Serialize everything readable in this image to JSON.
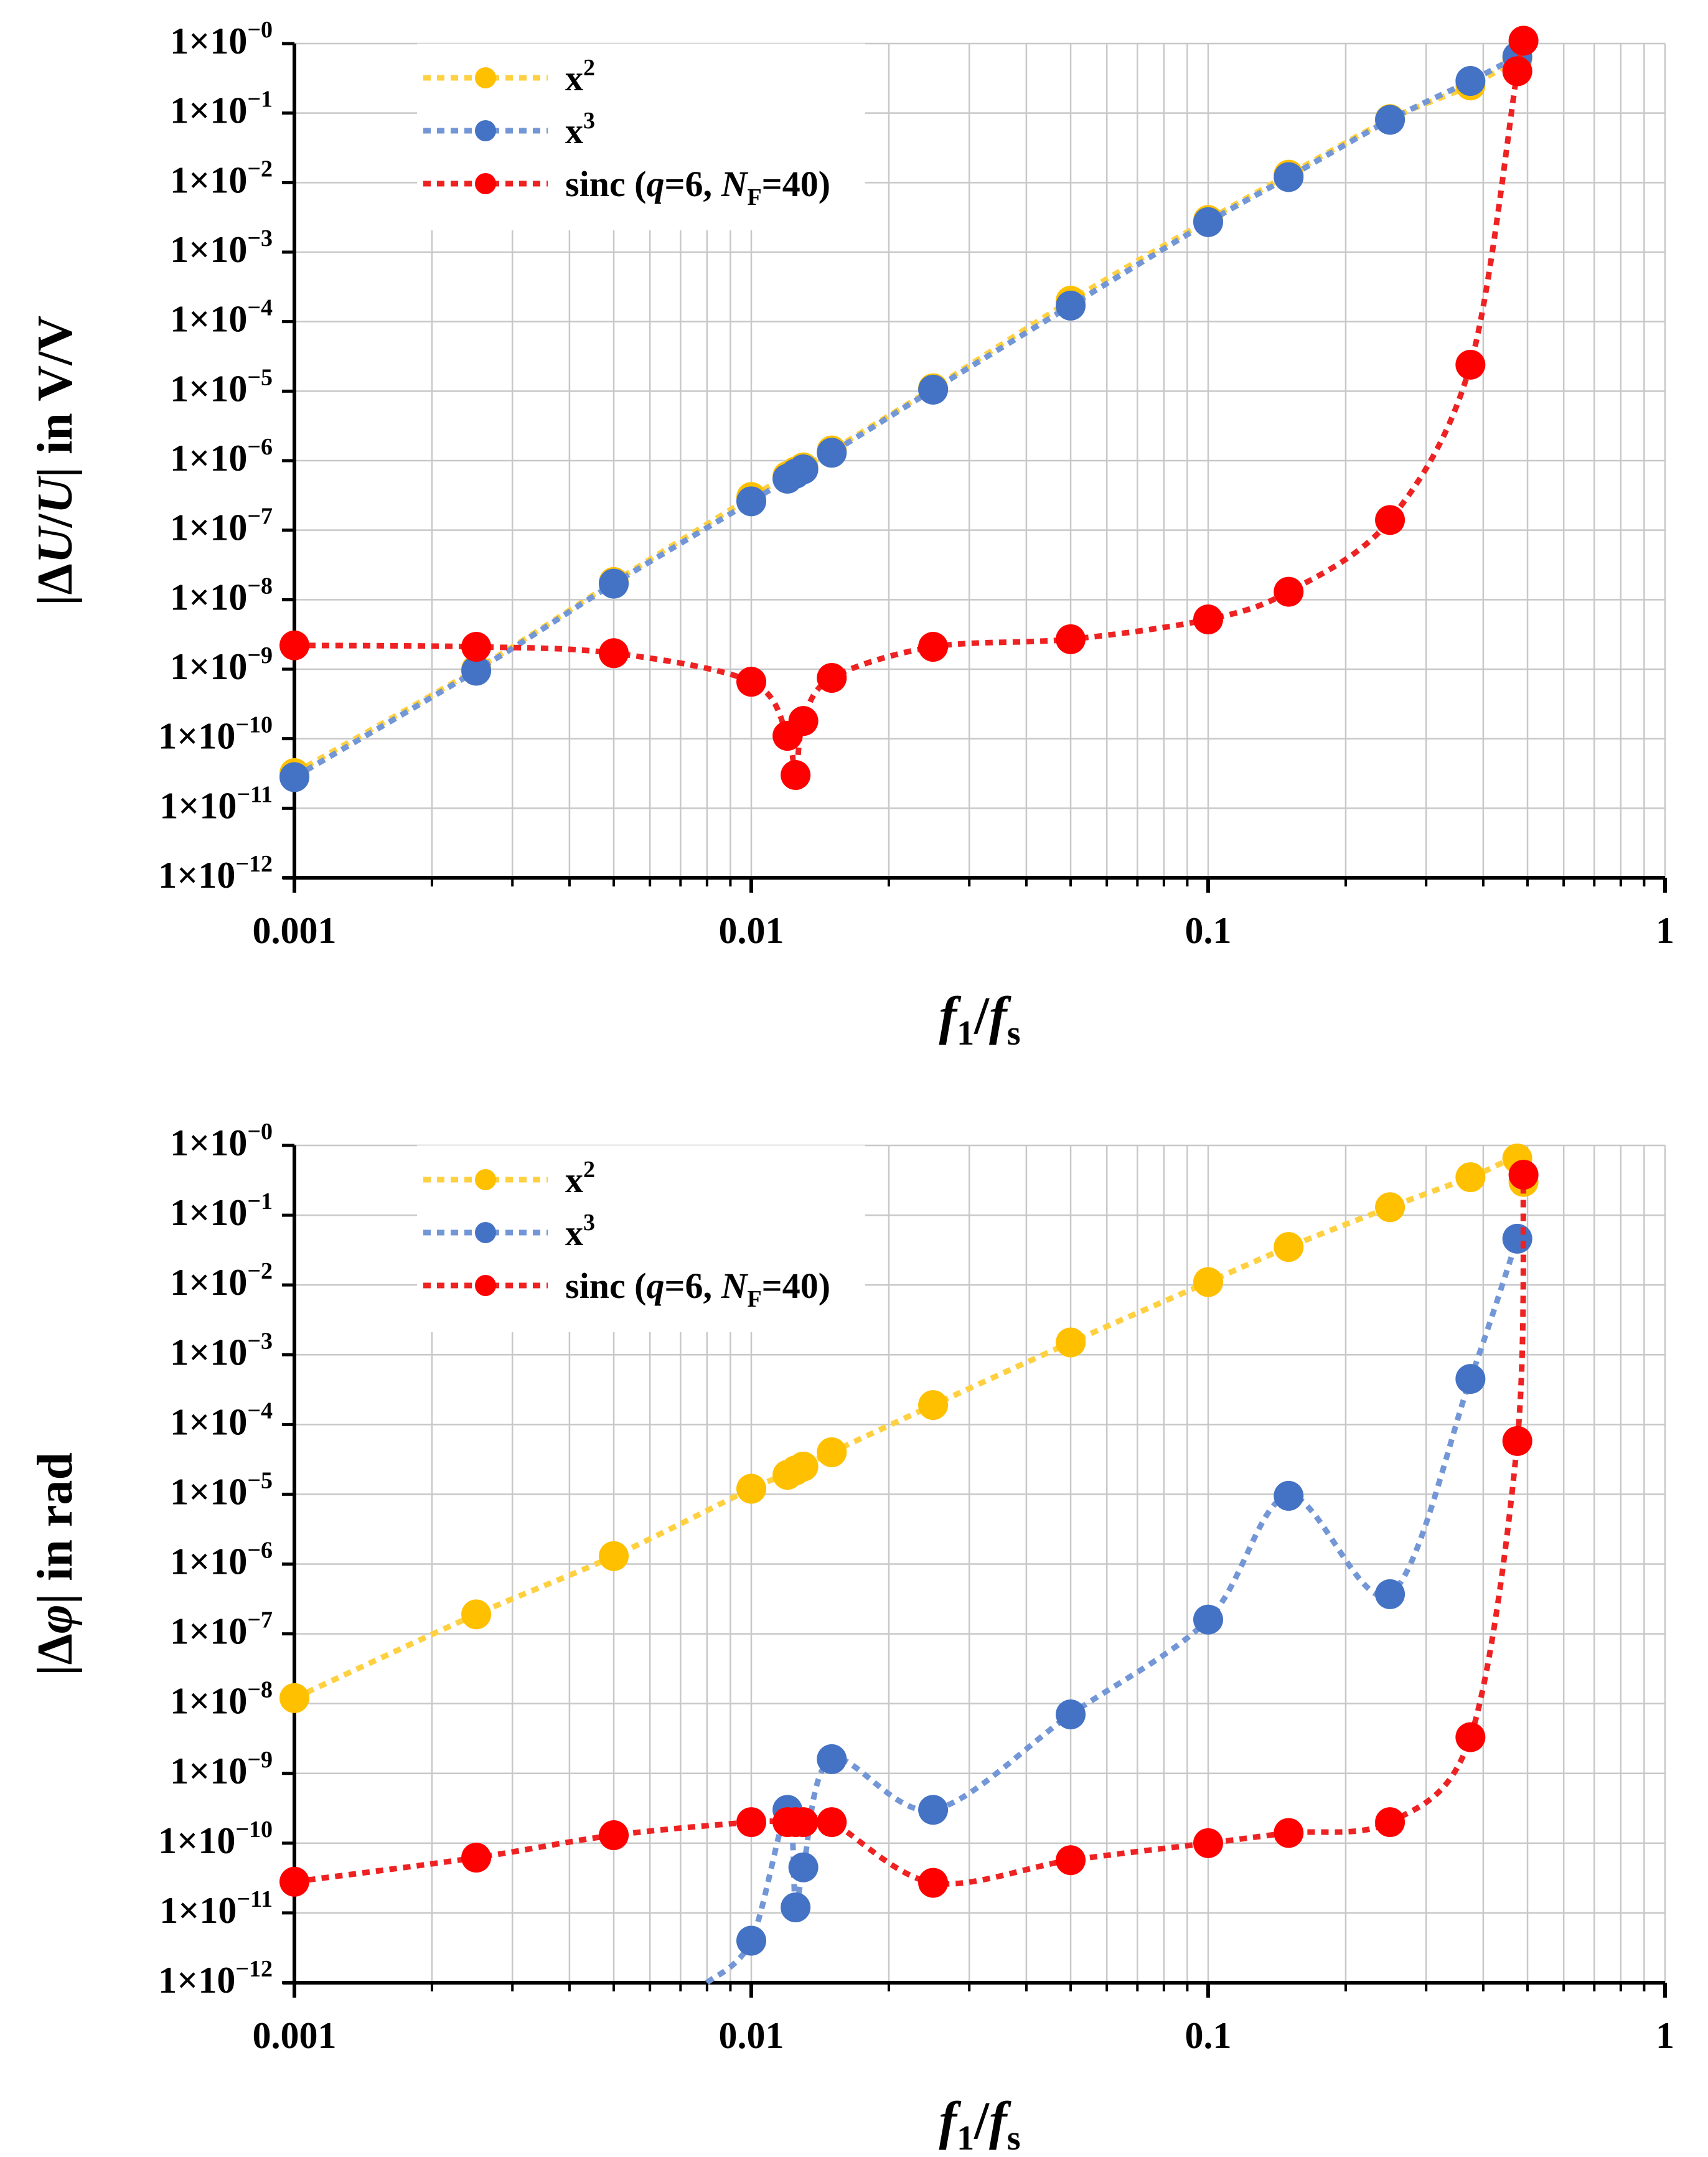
{
  "chart_data": [
    {
      "type": "line",
      "panel": "top",
      "x_scale": "log",
      "y_scale": "log",
      "xlim": [
        0.001,
        1
      ],
      "ylim": [
        1e-12,
        1
      ],
      "x_tick_labels": [
        "0.001",
        "0.01",
        "0.1",
        "1"
      ],
      "y_tick_labels": [
        "1×10",
        "1×10",
        "1×10",
        "1×10",
        "1×10",
        "1×10",
        "1×10",
        "1×10",
        "1×10",
        "1×10",
        "1×10",
        "1×10",
        "1×10"
      ],
      "y_tick_exponents": [
        "−12",
        "−11",
        "−10",
        "−9",
        "−8",
        "−7",
        "−6",
        "−5",
        "−4",
        "−3",
        "−2",
        "−1",
        "−0"
      ],
      "ylabel": {
        "pre": "|Δ",
        "u1": "U",
        "slash": "/",
        "u2": "U",
        "post": "| in V/V"
      },
      "xlabel": {
        "f": "f",
        "sub1": "1",
        "slash": "/",
        "fs": "f",
        "subs": "s"
      },
      "legend": [
        {
          "name": "x",
          "sup": "2"
        },
        {
          "name": "x",
          "sup": "3"
        },
        {
          "name": "sinc (",
          "q": "q",
          "eq1": "=6, ",
          "N": "N",
          "Nsub": "F",
          "eq2": "=40)"
        }
      ],
      "legend_placement": "top-left",
      "grid": true,
      "series": [
        {
          "name": "x^2",
          "color": "#FFC000",
          "line_color": "#FFD040",
          "points": [
            [
              0.001,
              3.2e-11
            ],
            [
              0.0025,
              1e-09
            ],
            [
              0.005,
              1.8e-08
            ],
            [
              0.01,
              3e-07
            ],
            [
              0.012,
              6e-07
            ],
            [
              0.0125,
              7e-07
            ],
            [
              0.013,
              8e-07
            ],
            [
              0.015,
              1.4e-06
            ],
            [
              0.025,
              1.1e-05
            ],
            [
              0.05,
              0.0002
            ],
            [
              0.1,
              0.0029
            ],
            [
              0.15,
              0.013
            ],
            [
              0.25,
              0.082
            ],
            [
              0.375,
              0.25
            ],
            [
              0.475,
              0.6
            ]
          ]
        },
        {
          "name": "x^3",
          "color": "#4472C4",
          "line_color": "#7397D6",
          "points": [
            [
              0.001,
              2.8e-11
            ],
            [
              0.0025,
              9.5e-10
            ],
            [
              0.005,
              1.7e-08
            ],
            [
              0.01,
              2.6e-07
            ],
            [
              0.012,
              5.5e-07
            ],
            [
              0.0125,
              6.5e-07
            ],
            [
              0.013,
              7.5e-07
            ],
            [
              0.015,
              1.3e-06
            ],
            [
              0.025,
              1.05e-05
            ],
            [
              0.05,
              0.00017
            ],
            [
              0.1,
              0.0027
            ],
            [
              0.15,
              0.012
            ],
            [
              0.25,
              0.08
            ],
            [
              0.375,
              0.29
            ],
            [
              0.475,
              0.65
            ]
          ]
        },
        {
          "name": "sinc (q=6, NF=40)",
          "color": "#FF0000",
          "line_color": "#EE2222",
          "points": [
            [
              0.001,
              2.2e-09
            ],
            [
              0.0025,
              2.1e-09
            ],
            [
              0.005,
              1.7e-09
            ],
            [
              0.01,
              6.6e-10
            ],
            [
              0.012,
              1.1e-10
            ],
            [
              0.0125,
              3e-11
            ],
            [
              0.013,
              1.8e-10
            ],
            [
              0.015,
              7.5e-10
            ],
            [
              0.025,
              2.1e-09
            ],
            [
              0.05,
              2.7e-09
            ],
            [
              0.1,
              5.2e-09
            ],
            [
              0.15,
              1.3e-08
            ],
            [
              0.25,
              1.4e-07
            ],
            [
              0.375,
              2.4e-05
            ],
            [
              0.475,
              0.4
            ],
            [
              0.49,
              1.1
            ]
          ]
        }
      ]
    },
    {
      "type": "line",
      "panel": "bottom",
      "x_scale": "log",
      "y_scale": "log",
      "xlim": [
        0.001,
        1
      ],
      "ylim": [
        1e-12,
        1
      ],
      "x_tick_labels": [
        "0.001",
        "0.01",
        "0.1",
        "1"
      ],
      "y_tick_labels": [
        "1×10",
        "1×10",
        "1×10",
        "1×10",
        "1×10",
        "1×10",
        "1×10",
        "1×10",
        "1×10",
        "1×10",
        "1×10",
        "1×10",
        "1×10"
      ],
      "y_tick_exponents": [
        "−12",
        "−11",
        "−10",
        "−9",
        "−8",
        "−7",
        "−6",
        "−5",
        "−4",
        "−3",
        "−2",
        "−1",
        "−0"
      ],
      "ylabel": {
        "pre": "|Δ",
        "phi": "φ",
        "post": "| in rad"
      },
      "xlabel": {
        "f": "f",
        "sub1": "1",
        "slash": "/",
        "fs": "f",
        "subs": "s"
      },
      "legend": [
        {
          "name": "x",
          "sup": "2"
        },
        {
          "name": "x",
          "sup": "3"
        },
        {
          "name": "sinc (",
          "q": "q",
          "eq1": "=6, ",
          "N": "N",
          "Nsub": "F",
          "eq2": "=40)"
        }
      ],
      "legend_placement": "top-left",
      "grid": true,
      "series": [
        {
          "name": "x^2",
          "color": "#FFC000",
          "line_color": "#FFD040",
          "points": [
            [
              0.001,
              1.2e-08
            ],
            [
              0.0025,
              1.9e-07
            ],
            [
              0.005,
              1.3e-06
            ],
            [
              0.01,
              1.2e-05
            ],
            [
              0.012,
              1.9e-05
            ],
            [
              0.0125,
              2.2e-05
            ],
            [
              0.013,
              2.5e-05
            ],
            [
              0.015,
              4e-05
            ],
            [
              0.025,
              0.00019
            ],
            [
              0.05,
              0.0015
            ],
            [
              0.1,
              0.011
            ],
            [
              0.15,
              0.035
            ],
            [
              0.25,
              0.13
            ],
            [
              0.375,
              0.35
            ],
            [
              0.475,
              0.65
            ],
            [
              0.49,
              0.3
            ]
          ]
        },
        {
          "name": "x^3",
          "color": "#4472C4",
          "line_color": "#7397D6",
          "points": [
            [
              0.008,
              1e-12
            ],
            [
              0.01,
              4e-12
            ],
            [
              0.012,
              3e-10
            ],
            [
              0.0125,
              1.2e-11
            ],
            [
              0.013,
              4.5e-11
            ],
            [
              0.015,
              1.6e-09
            ],
            [
              0.025,
              3e-10
            ],
            [
              0.05,
              7e-09
            ],
            [
              0.1,
              1.6e-07
            ],
            [
              0.15,
              9.5e-06
            ],
            [
              0.25,
              3.7e-07
            ],
            [
              0.375,
              0.00045
            ],
            [
              0.475,
              0.046
            ]
          ]
        },
        {
          "name": "sinc (q=6, NF=40)",
          "color": "#FF0000",
          "line_color": "#EE2222",
          "points": [
            [
              0.001,
              2.8e-11
            ],
            [
              0.0025,
              6.2e-11
            ],
            [
              0.005,
              1.3e-10
            ],
            [
              0.01,
              2e-10
            ],
            [
              0.012,
              2e-10
            ],
            [
              0.0125,
              2e-10
            ],
            [
              0.013,
              2e-10
            ],
            [
              0.015,
              2e-10
            ],
            [
              0.025,
              2.7e-11
            ],
            [
              0.05,
              5.7e-11
            ],
            [
              0.1,
              1e-10
            ],
            [
              0.15,
              1.4e-10
            ],
            [
              0.25,
              2e-10
            ],
            [
              0.375,
              3.3e-09
            ],
            [
              0.475,
              5.8e-05
            ],
            [
              0.49,
              0.38
            ]
          ]
        }
      ]
    }
  ]
}
